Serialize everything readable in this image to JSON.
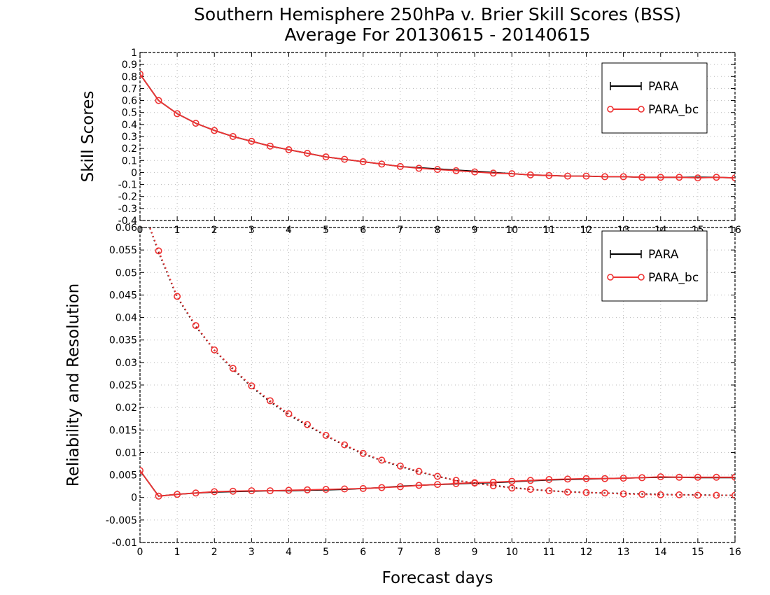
{
  "title_line1": "Southern Hemisphere 250hPa v. Brier Skill Scores (BSS)",
  "title_line2": "Average For 20130615 - 20140615",
  "colors": {
    "para": "#000000",
    "para_bc": "#ee3333"
  },
  "chart_data": [
    {
      "type": "line",
      "panel": "top",
      "xlabel": "",
      "ylabel": "Skill Scores",
      "xlim": [
        0,
        16
      ],
      "ylim": [
        -0.4,
        1
      ],
      "xticks": [
        "0",
        "1",
        "2",
        "3",
        "4",
        "5",
        "6",
        "7",
        "8",
        "9",
        "10",
        "11",
        "12",
        "13",
        "14",
        "15",
        "16"
      ],
      "yticks": [
        "-0.4",
        "-0.3",
        "-0.2",
        "-0.1",
        "0",
        "0.1",
        "0.2",
        "0.3",
        "0.4",
        "0.5",
        "0.6",
        "0.7",
        "0.8",
        "0.9",
        "1"
      ],
      "grid": true,
      "legend_position": "top-right",
      "legend": [
        "PARA",
        "PARA_bc"
      ],
      "x": [
        0,
        0.5,
        1,
        1.5,
        2,
        2.5,
        3,
        3.5,
        4,
        4.5,
        5,
        5.5,
        6,
        6.5,
        7,
        7.5,
        8,
        8.5,
        9,
        9.5,
        10,
        10.5,
        11,
        11.5,
        12,
        12.5,
        13,
        13.5,
        14,
        14.5,
        15,
        15.5,
        16
      ],
      "series": [
        {
          "name": "PARA",
          "style": "solid",
          "values": [
            0.82,
            0.6,
            0.49,
            0.41,
            0.35,
            0.3,
            0.26,
            0.22,
            0.19,
            0.16,
            0.13,
            0.11,
            0.09,
            0.07,
            0.05,
            0.04,
            0.03,
            0.02,
            0.01,
            0,
            -0.01,
            -0.02,
            -0.025,
            -0.03,
            -0.03,
            -0.035,
            -0.035,
            -0.04,
            -0.04,
            -0.04,
            -0.04,
            -0.04,
            -0.045
          ]
        },
        {
          "name": "PARA_bc",
          "style": "solid",
          "markers": true,
          "values": [
            0.82,
            0.6,
            0.49,
            0.41,
            0.35,
            0.3,
            0.26,
            0.22,
            0.19,
            0.16,
            0.13,
            0.11,
            0.09,
            0.07,
            0.05,
            0.035,
            0.025,
            0.015,
            0.005,
            -0.005,
            -0.01,
            -0.02,
            -0.025,
            -0.03,
            -0.03,
            -0.035,
            -0.035,
            -0.04,
            -0.04,
            -0.04,
            -0.045,
            -0.04,
            -0.045
          ]
        }
      ]
    },
    {
      "type": "line",
      "panel": "bottom",
      "xlabel": "Forecast days",
      "ylabel": "Reliability and Resolution",
      "xlim": [
        0,
        16
      ],
      "ylim": [
        -0.01,
        0.06
      ],
      "xticks": [
        "0",
        "1",
        "2",
        "3",
        "4",
        "5",
        "6",
        "7",
        "8",
        "9",
        "10",
        "11",
        "12",
        "13",
        "14",
        "15",
        "16"
      ],
      "yticks": [
        "-0.01",
        "-0.005",
        "0",
        "0.005",
        "0.01",
        "0.015",
        "0.02",
        "0.025",
        "0.03",
        "0.035",
        "0.04",
        "0.045",
        "0.05",
        "0.055",
        "0.06"
      ],
      "grid": true,
      "legend_position": "top-right",
      "legend": [
        "PARA",
        "PARA_bc"
      ],
      "x": [
        0,
        0.5,
        1,
        1.5,
        2,
        2.5,
        3,
        3.5,
        4,
        4.5,
        5,
        5.5,
        6,
        6.5,
        7,
        7.5,
        8,
        8.5,
        9,
        9.5,
        10,
        10.5,
        11,
        11.5,
        12,
        12.5,
        13,
        13.5,
        14,
        14.5,
        15,
        15.5,
        16
      ],
      "series": [
        {
          "name": "PARA",
          "style": "solid",
          "values": [
            0.006,
            0.0003,
            0.0007,
            0.001,
            0.0012,
            0.0013,
            0.0014,
            0.0015,
            0.0015,
            0.0016,
            0.0017,
            0.0018,
            0.002,
            0.0022,
            0.0025,
            0.0027,
            0.0029,
            0.003,
            0.0032,
            0.0033,
            0.0035,
            0.0037,
            0.0039,
            0.004,
            0.0041,
            0.0042,
            0.0043,
            0.0044,
            0.0045,
            0.0045,
            0.0044,
            0.0044,
            0.0044
          ]
        },
        {
          "name": "PARA_bc",
          "style": "solid",
          "markers": true,
          "values": [
            0.006,
            0.0003,
            0.0007,
            0.001,
            0.0013,
            0.0014,
            0.0015,
            0.0015,
            0.0016,
            0.0017,
            0.0018,
            0.0019,
            0.002,
            0.0022,
            0.0024,
            0.0027,
            0.0029,
            0.0031,
            0.0033,
            0.0034,
            0.0036,
            0.0038,
            0.004,
            0.0041,
            0.0042,
            0.0042,
            0.0043,
            0.0044,
            0.0046,
            0.0045,
            0.0045,
            0.0045,
            0.0045
          ]
        },
        {
          "name": "PARA",
          "style": "dotted",
          "values": [
            0.066,
            0.0545,
            0.0445,
            0.038,
            0.0327,
            0.0285,
            0.0246,
            0.0213,
            0.0184,
            0.016,
            0.0137,
            0.0116,
            0.0097,
            0.0082,
            0.0069,
            0.0057,
            0.0047,
            0.0038,
            0.0032,
            0.0027,
            0.0022,
            0.0018,
            0.0015,
            0.0013,
            0.0011,
            0.001,
            0.0009,
            0.0008,
            0.0007,
            0.0006,
            0.0006,
            0.0005,
            0.0005
          ]
        },
        {
          "name": "PARA_bc",
          "style": "dotted",
          "markers": true,
          "values": [
            0.066,
            0.0548,
            0.0447,
            0.0382,
            0.0328,
            0.0287,
            0.0248,
            0.0215,
            0.0186,
            0.0162,
            0.0138,
            0.0117,
            0.0098,
            0.0083,
            0.007,
            0.0058,
            0.0047,
            0.0038,
            0.0032,
            0.0026,
            0.0021,
            0.0018,
            0.0015,
            0.0012,
            0.0011,
            0.001,
            0.0008,
            0.0007,
            0.0006,
            0.0006,
            0.0005,
            0.0005,
            0.0005
          ]
        }
      ]
    }
  ]
}
